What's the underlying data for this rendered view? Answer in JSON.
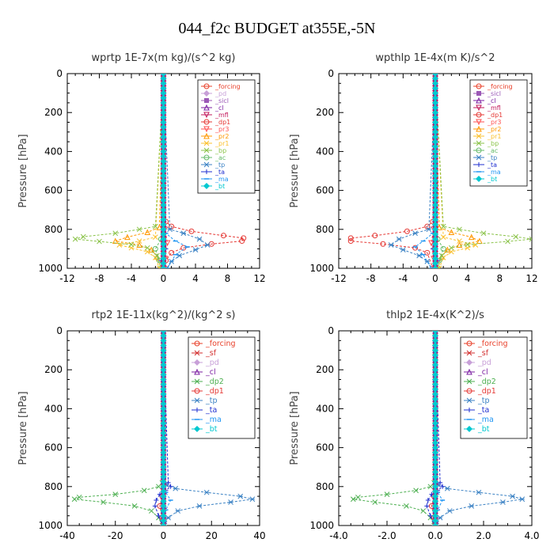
{
  "figure": {
    "title": "044_f2c  BUDGET at355E,-5N"
  },
  "colors": {
    "_forcing": "#e8402a",
    "_pd": "#c8a0d8",
    "_sicl": "#9b59b6",
    "_cl": "#7b1fa2",
    "_mfl": "#c2185b",
    "_dp1": "#e53935",
    "_pr3": "#ff5252",
    "_pr2": "#ff9800",
    "_pr1": "#fbc02d",
    "_bp": "#8bc34a",
    "_ac": "#66bb6a",
    "_tp": "#3b82c4",
    "_ta": "#1f2fd0",
    "_ma": "#2196f3",
    "_bt": "#00c8d0",
    "_sf": "#d32f2f",
    "_dp2": "#4caf50"
  },
  "chart_data": [
    {
      "type": "line",
      "title": "wprtp  1E-7x(m kg)/(s^2 kg)",
      "ylabel": "Pressure [hPa]",
      "xlim": [
        -12,
        12
      ],
      "ylim": [
        1000,
        0
      ],
      "xticks": [
        "-12",
        "-8",
        "-4",
        "0",
        "4",
        "8",
        "12"
      ],
      "yticks": [
        "0",
        "200",
        "400",
        "600",
        "800",
        "1000"
      ],
      "legend": {
        "placement": "top-right",
        "entries": [
          "_forcing",
          "_pd",
          "_sicl",
          "_cl",
          "_mfl",
          "_dp1",
          "_pr3",
          "_pr2",
          "_pr1",
          "_bp",
          "_ac",
          "_tp",
          "_ta",
          "_ma",
          "_bt"
        ]
      },
      "series": [
        {
          "name": "_forcing",
          "x": [
            0,
            0
          ],
          "y": [
            0,
            1000
          ]
        },
        {
          "name": "_pd",
          "x": [
            0,
            0
          ],
          "y": [
            0,
            1000
          ]
        },
        {
          "name": "_sicl",
          "x": [
            0,
            0
          ],
          "y": [
            0,
            1000
          ]
        },
        {
          "name": "_cl",
          "x": [
            0,
            0
          ],
          "y": [
            0,
            1000
          ]
        },
        {
          "name": "_mfl",
          "x": [
            0,
            0
          ],
          "y": [
            0,
            1000
          ]
        },
        {
          "name": "_dp1",
          "x": [
            0,
            0.3,
            1,
            3.5,
            7.5,
            10,
            9.8,
            6,
            2.5,
            1,
            0.3,
            0.2
          ],
          "y": [
            0,
            760,
            785,
            810,
            832,
            845,
            860,
            875,
            895,
            920,
            960,
            1000
          ]
        },
        {
          "name": "_pr3",
          "x": [
            0,
            0.2,
            0.5,
            0.2,
            0
          ],
          "y": [
            0,
            800,
            870,
            950,
            1000
          ]
        },
        {
          "name": "_pr2",
          "x": [
            0,
            -0.5,
            -2,
            -4.5,
            -6,
            -3,
            -1.5,
            -0.8,
            -0.3
          ],
          "y": [
            0,
            790,
            815,
            840,
            860,
            880,
            905,
            940,
            1000
          ]
        },
        {
          "name": "_pr1",
          "x": [
            0,
            -1,
            -3,
            -5.5,
            -4,
            -2,
            -1,
            -0.5
          ],
          "y": [
            0,
            840,
            860,
            880,
            895,
            915,
            945,
            1000
          ]
        },
        {
          "name": "_bp",
          "x": [
            0,
            -1,
            -3,
            -6,
            -10,
            -11,
            -8,
            -4,
            -2,
            -0.8,
            -0.3
          ],
          "y": [
            0,
            785,
            800,
            820,
            838,
            850,
            862,
            878,
            895,
            935,
            1000
          ]
        },
        {
          "name": "_ac",
          "x": [
            0,
            -0.3,
            -1,
            -0.5,
            0
          ],
          "y": [
            0,
            850,
            900,
            960,
            1000
          ]
        },
        {
          "name": "_tp",
          "x": [
            0,
            0.8,
            2.5,
            4.5,
            5.5,
            4,
            2,
            1,
            0.4
          ],
          "y": [
            0,
            800,
            820,
            850,
            880,
            905,
            935,
            965,
            1000
          ]
        },
        {
          "name": "_ta",
          "x": [
            0,
            0.3,
            -0.3,
            0
          ],
          "y": [
            0,
            900,
            960,
            1000
          ]
        },
        {
          "name": "_ma",
          "x": [
            0,
            0.3,
            1.5,
            3,
            1.5,
            0.5
          ],
          "y": [
            0,
            820,
            860,
            890,
            930,
            1000
          ]
        },
        {
          "name": "_bt",
          "x": [
            0,
            0
          ],
          "y": [
            0,
            1000
          ]
        }
      ]
    },
    {
      "type": "line",
      "title": "wpthlp  1E-4x(m K)/s^2",
      "ylabel": "Pressure [hPa]",
      "xlim": [
        -12,
        12
      ],
      "ylim": [
        1000,
        0
      ],
      "xticks": [
        "-12",
        "-8",
        "-4",
        "0",
        "4",
        "8",
        "12"
      ],
      "yticks": [
        "0",
        "200",
        "400",
        "600",
        "800",
        "1000"
      ],
      "legend": {
        "placement": "top-right",
        "entries": [
          "_forcing",
          "_sicl",
          "_cl",
          "_mfl",
          "_dp1",
          "_pr3",
          "_pr2",
          "_pr1",
          "_bp",
          "_ac",
          "_tp",
          "_ta",
          "_ma",
          "_bt"
        ]
      },
      "series": [
        {
          "name": "_forcing",
          "x": [
            0,
            0
          ],
          "y": [
            0,
            1000
          ]
        },
        {
          "name": "_sicl",
          "x": [
            0,
            0
          ],
          "y": [
            0,
            1000
          ]
        },
        {
          "name": "_cl",
          "x": [
            0,
            0
          ],
          "y": [
            0,
            1000
          ]
        },
        {
          "name": "_mfl",
          "x": [
            0,
            0
          ],
          "y": [
            0,
            1000
          ]
        },
        {
          "name": "_dp1",
          "x": [
            0,
            -0.3,
            -1,
            -3.5,
            -7.5,
            -10.5,
            -10.5,
            -6.5,
            -2.5,
            -1,
            -0.3
          ],
          "y": [
            0,
            760,
            785,
            810,
            832,
            845,
            860,
            875,
            895,
            920,
            1000
          ]
        },
        {
          "name": "_pr3",
          "x": [
            0,
            -0.2,
            -0.5,
            -0.2,
            0
          ],
          "y": [
            0,
            800,
            870,
            950,
            1000
          ]
        },
        {
          "name": "_pr2",
          "x": [
            0,
            0.5,
            2,
            4.5,
            5.5,
            3,
            1.5,
            0.8,
            0.3
          ],
          "y": [
            0,
            790,
            815,
            840,
            860,
            880,
            905,
            940,
            1000
          ]
        },
        {
          "name": "_pr1",
          "x": [
            0,
            1,
            3,
            5,
            4,
            2,
            1,
            0.5
          ],
          "y": [
            0,
            840,
            860,
            880,
            895,
            915,
            945,
            1000
          ]
        },
        {
          "name": "_bp",
          "x": [
            0,
            1,
            3,
            6,
            10,
            12,
            9,
            4,
            2,
            0.8,
            0.3
          ],
          "y": [
            0,
            785,
            800,
            820,
            838,
            850,
            862,
            878,
            895,
            935,
            1000
          ]
        },
        {
          "name": "_ac",
          "x": [
            0,
            0.3,
            1,
            0.5,
            0
          ],
          "y": [
            0,
            850,
            900,
            960,
            1000
          ]
        },
        {
          "name": "_tp",
          "x": [
            0,
            -0.8,
            -2.5,
            -4.5,
            -5.5,
            -4,
            -2,
            -1,
            -0.4
          ],
          "y": [
            0,
            800,
            820,
            850,
            880,
            905,
            935,
            965,
            1000
          ]
        },
        {
          "name": "_ta",
          "x": [
            0,
            -0.3,
            0.3,
            0
          ],
          "y": [
            0,
            900,
            960,
            1000
          ]
        },
        {
          "name": "_ma",
          "x": [
            0,
            -0.3,
            -1.5,
            -2.5,
            -1.5,
            -0.5
          ],
          "y": [
            0,
            820,
            860,
            890,
            930,
            1000
          ]
        },
        {
          "name": "_bt",
          "x": [
            0,
            0
          ],
          "y": [
            0,
            1000
          ]
        }
      ]
    },
    {
      "type": "line",
      "title": "rtp2  1E-11x(kg^2)/(kg^2 s)",
      "ylabel": "Pressure [hPa]",
      "xlim": [
        -40,
        40
      ],
      "ylim": [
        1000,
        0
      ],
      "xticks": [
        "-40",
        "-20",
        "0",
        "20",
        "40"
      ],
      "yticks": [
        "0",
        "200",
        "400",
        "600",
        "800",
        "1000"
      ],
      "legend": {
        "placement": "top-right",
        "entries": [
          "_forcing",
          "_sf",
          "_pd",
          "_cl",
          "_dp2",
          "_dp1",
          "_tp",
          "_ta",
          "_ma",
          "_bt"
        ]
      },
      "series": [
        {
          "name": "_forcing",
          "x": [
            0,
            0
          ],
          "y": [
            0,
            1000
          ]
        },
        {
          "name": "_sf",
          "x": [
            0,
            0
          ],
          "y": [
            0,
            1000
          ]
        },
        {
          "name": "_pd",
          "x": [
            0,
            0
          ],
          "y": [
            0,
            1000
          ]
        },
        {
          "name": "_cl",
          "x": [
            0,
            0
          ],
          "y": [
            0,
            1000
          ]
        },
        {
          "name": "_dp2",
          "x": [
            0,
            -0.5,
            -2,
            -8,
            -20,
            -35,
            -37,
            -25,
            -12,
            -5,
            -2,
            -0.5
          ],
          "y": [
            0,
            780,
            800,
            820,
            840,
            855,
            865,
            880,
            900,
            925,
            960,
            1000
          ]
        },
        {
          "name": "_dp1",
          "x": [
            0,
            -0.5,
            -1.5,
            -0.5,
            0
          ],
          "y": [
            0,
            850,
            900,
            960,
            1000
          ]
        },
        {
          "name": "_tp",
          "x": [
            0,
            1,
            5,
            18,
            32,
            37,
            28,
            15,
            6,
            2,
            0.5
          ],
          "y": [
            0,
            790,
            810,
            830,
            850,
            865,
            880,
            900,
            925,
            960,
            1000
          ]
        },
        {
          "name": "_ta",
          "x": [
            0,
            2,
            3,
            1,
            -1.5,
            -3,
            -3.5,
            -2,
            -0.5
          ],
          "y": [
            0,
            780,
            800,
            820,
            840,
            870,
            900,
            950,
            1000
          ]
        },
        {
          "name": "_ma",
          "x": [
            0,
            1,
            3,
            1,
            0
          ],
          "y": [
            0,
            830,
            870,
            920,
            1000
          ]
        },
        {
          "name": "_bt",
          "x": [
            0,
            0
          ],
          "y": [
            0,
            1000
          ]
        }
      ]
    },
    {
      "type": "line",
      "title": "thlp2  1E-4x(K^2)/s",
      "ylabel": "Pressure [hPa]",
      "xlim": [
        -4,
        4
      ],
      "ylim": [
        1000,
        0
      ],
      "xticks": [
        "-4.0",
        "-2.0",
        "0.0",
        "2.0",
        "4.0"
      ],
      "yticks": [
        "0",
        "200",
        "400",
        "600",
        "800",
        "1000"
      ],
      "legend": {
        "placement": "top-right",
        "entries": [
          "_forcing",
          "_sf",
          "_pd",
          "_cl",
          "_dp2",
          "_dp1",
          "_tp",
          "_ta",
          "_ma",
          "_bt"
        ]
      },
      "series": [
        {
          "name": "_forcing",
          "x": [
            0,
            0
          ],
          "y": [
            0,
            1000
          ]
        },
        {
          "name": "_sf",
          "x": [
            0,
            0
          ],
          "y": [
            0,
            1000
          ]
        },
        {
          "name": "_pd",
          "x": [
            0,
            0
          ],
          "y": [
            0,
            1000
          ]
        },
        {
          "name": "_cl",
          "x": [
            0,
            0
          ],
          "y": [
            0,
            1000
          ]
        },
        {
          "name": "_dp2",
          "x": [
            0,
            -0.05,
            -0.2,
            -0.8,
            -2,
            -3.2,
            -3.4,
            -2.5,
            -1.2,
            -0.5,
            -0.2,
            -0.05
          ],
          "y": [
            0,
            780,
            800,
            820,
            840,
            855,
            865,
            880,
            900,
            925,
            960,
            1000
          ]
        },
        {
          "name": "_dp1",
          "x": [
            0,
            -0.05,
            -0.15,
            -0.05,
            0
          ],
          "y": [
            0,
            850,
            900,
            960,
            1000
          ]
        },
        {
          "name": "_tp",
          "x": [
            0,
            0.1,
            0.5,
            1.8,
            3.2,
            3.6,
            2.8,
            1.5,
            0.6,
            0.2,
            0.05
          ],
          "y": [
            0,
            790,
            810,
            830,
            850,
            865,
            880,
            900,
            925,
            960,
            1000
          ]
        },
        {
          "name": "_ta",
          "x": [
            0,
            0.2,
            0.3,
            0.1,
            -0.15,
            -0.3,
            -0.35,
            -0.2,
            -0.05
          ],
          "y": [
            0,
            780,
            800,
            820,
            840,
            870,
            900,
            950,
            1000
          ]
        },
        {
          "name": "_ma",
          "x": [
            0,
            0.1,
            0.3,
            0.1,
            0
          ],
          "y": [
            0,
            830,
            870,
            920,
            1000
          ]
        },
        {
          "name": "_bt",
          "x": [
            0,
            0
          ],
          "y": [
            0,
            1000
          ]
        }
      ]
    }
  ]
}
